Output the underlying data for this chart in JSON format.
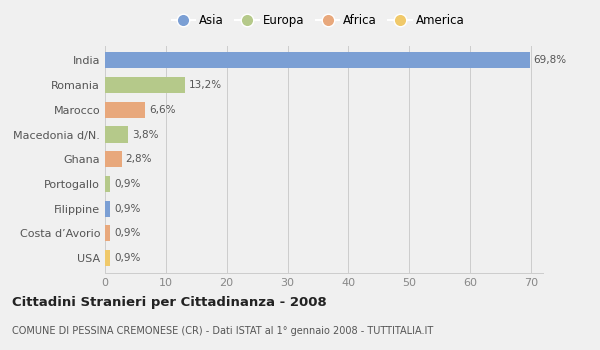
{
  "categories": [
    "India",
    "Romania",
    "Marocco",
    "Macedonia d/N.",
    "Ghana",
    "Portogallo",
    "Filippine",
    "Costa d’Avorio",
    "USA"
  ],
  "values": [
    69.8,
    13.2,
    6.6,
    3.8,
    2.8,
    0.9,
    0.9,
    0.9,
    0.9
  ],
  "labels": [
    "69,8%",
    "13,2%",
    "6,6%",
    "3,8%",
    "2,8%",
    "0,9%",
    "0,9%",
    "0,9%",
    "0,9%"
  ],
  "colors": [
    "#7b9fd4",
    "#b5c98a",
    "#e8a87c",
    "#b5c98a",
    "#e8a87c",
    "#b5c98a",
    "#7b9fd4",
    "#e8a87c",
    "#f0c96a"
  ],
  "legend_labels": [
    "Asia",
    "Europa",
    "Africa",
    "America"
  ],
  "legend_colors": [
    "#7b9fd4",
    "#b5c98a",
    "#e8a87c",
    "#f0c96a"
  ],
  "title": "Cittadini Stranieri per Cittadinanza - 2008",
  "subtitle": "COMUNE DI PESSINA CREMONESE (CR) - Dati ISTAT al 1° gennaio 2008 - TUTTITALIA.IT",
  "xlim": [
    0,
    72
  ],
  "xticks": [
    0,
    10,
    20,
    30,
    40,
    50,
    60,
    70
  ],
  "background_color": "#f0f0f0",
  "plot_background": "#f0f0f0"
}
